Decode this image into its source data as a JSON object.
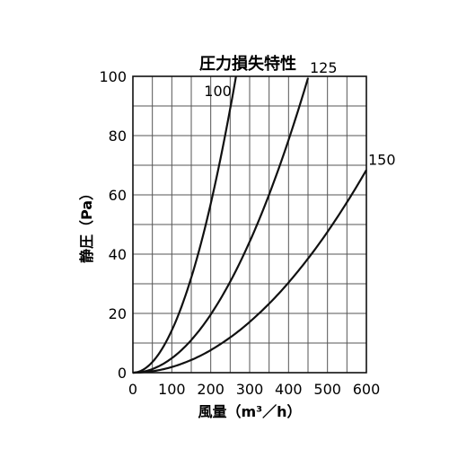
{
  "chart_data": {
    "type": "line",
    "title": "圧力損失特性",
    "xlabel": "風量（m³／h）",
    "ylabel": "静圧（Pa）",
    "xlim": [
      0,
      600
    ],
    "ylim": [
      0,
      100
    ],
    "x_ticks": [
      0,
      100,
      200,
      300,
      400,
      500,
      600
    ],
    "y_ticks": [
      0,
      20,
      40,
      60,
      80,
      100
    ],
    "x_minor_step": 50,
    "y_minor_step": 10,
    "grid": true,
    "series": [
      {
        "name": "100",
        "x": [
          0,
          50,
          100,
          150,
          200,
          250,
          265
        ],
        "y": [
          0,
          3.6,
          14.3,
          32.1,
          57,
          89.1,
          100
        ]
      },
      {
        "name": "125",
        "x": [
          0,
          50,
          100,
          150,
          200,
          250,
          300,
          350,
          400,
          450
        ],
        "y": [
          0,
          1.2,
          4.9,
          11,
          19.6,
          30.7,
          44.2,
          60.1,
          78.5,
          99.4
        ]
      },
      {
        "name": "150",
        "x": [
          0,
          50,
          100,
          150,
          200,
          250,
          300,
          350,
          400,
          450,
          500,
          550,
          600
        ],
        "y": [
          0,
          0.5,
          1.9,
          4.3,
          7.6,
          11.9,
          17.1,
          23.3,
          30.4,
          38.5,
          47.5,
          57.5,
          68.4
        ]
      }
    ]
  }
}
